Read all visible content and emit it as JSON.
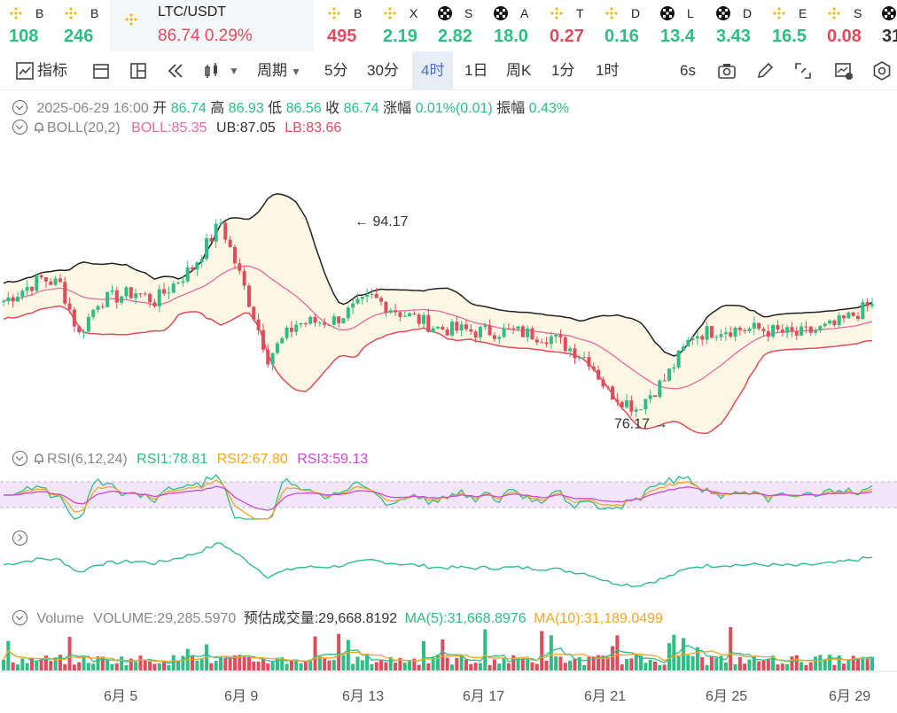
{
  "tickers": [
    {
      "name": "B",
      "price": "108",
      "color": "up",
      "icon": "binance-icon"
    },
    {
      "name": "B",
      "price": "246",
      "color": "up",
      "icon": "binance-icon"
    },
    {
      "name": "LTC/USDT",
      "price": "86.74",
      "change": "0.29%",
      "color": "dn",
      "icon": "binance-icon"
    },
    {
      "name": "B",
      "price": "495",
      "color": "dn",
      "icon": "binance-icon"
    },
    {
      "name": "X",
      "price": "2.19",
      "color": "up",
      "icon": "binance-icon"
    },
    {
      "name": "S",
      "price": "2.82",
      "color": "up",
      "icon": "okx-icon"
    },
    {
      "name": "A",
      "price": "18.0",
      "color": "up",
      "icon": "okx-icon"
    },
    {
      "name": "T",
      "price": "0.27",
      "color": "dn",
      "icon": "binance-icon"
    },
    {
      "name": "D",
      "price": "0.16",
      "color": "up",
      "icon": "binance-icon"
    },
    {
      "name": "L",
      "price": "13.4",
      "color": "up",
      "icon": "okx-icon"
    },
    {
      "name": "D",
      "price": "3.43",
      "color": "up",
      "icon": "okx-icon"
    },
    {
      "name": "E",
      "price": "16.5",
      "color": "up",
      "icon": "binance-icon"
    },
    {
      "name": "S",
      "price": "0.08",
      "color": "dn",
      "icon": "binance-icon"
    },
    {
      "name": "",
      "price": "31",
      "color": "k",
      "icon": "okx-icon"
    }
  ],
  "toolbar": {
    "indicator": "指标",
    "period": "周期",
    "intervals": [
      "5分",
      "30分",
      "4时",
      "1日",
      "周K",
      "1分",
      "1时"
    ],
    "selected": "4时",
    "refresh": "6s"
  },
  "ohlc": {
    "date": "2025-06-29 16:00",
    "open_l": "开",
    "open": "86.74",
    "high_l": "高",
    "high": "86.93",
    "low_l": "低",
    "low": "86.56",
    "close_l": "收",
    "close": "86.74",
    "chg_l": "涨幅",
    "chg": "0.01%(0.01)",
    "amp_l": "振幅",
    "amp": "0.43%"
  },
  "boll": {
    "name": "BOLL(20,2)",
    "mid": "BOLL:85.35",
    "ub": "UB:87.05",
    "lb": "LB:83.66"
  },
  "rsi": {
    "name": "RSI(6,12,24)",
    "r1": "RSI1:78.81",
    "r2": "RSI2:67.80",
    "r3": "RSI3:59.13"
  },
  "vol": {
    "name": "Volume",
    "v": "VOLUME:29,285.5970",
    "est": "预估成交量:29,668.8192",
    "ma5": "MA(5):31,668.8976",
    "ma10": "MA(10):31,189.0499"
  },
  "xaxis": [
    "6月 5",
    "6月 9",
    "6月 13",
    "6月 17",
    "6月 21",
    "6月 25",
    "6月 29"
  ],
  "annotations": {
    "high": "94.17",
    "low": "76.17"
  },
  "colors": {
    "up": "#2ebd85",
    "down": "#e04c5c",
    "boll_mid": "#e86aa0",
    "ub": "#222",
    "lb": "#e04c5c",
    "rsi1": "#2ebd85",
    "rsi2": "#f5a623",
    "rsi3": "#c84ad6"
  },
  "chart_data": {
    "type": "candlestick",
    "price_range": [
      74,
      100
    ],
    "keypoints": [
      [
        0,
        87
      ],
      [
        8,
        89
      ],
      [
        12,
        88.5
      ],
      [
        16,
        84
      ],
      [
        20,
        87
      ],
      [
        28,
        87.8
      ],
      [
        32,
        87
      ],
      [
        40,
        90
      ],
      [
        46,
        94
      ],
      [
        52,
        87
      ],
      [
        56,
        82
      ],
      [
        62,
        85
      ],
      [
        70,
        85.3
      ],
      [
        78,
        87.3
      ],
      [
        84,
        86
      ],
      [
        92,
        84.6
      ],
      [
        100,
        84.3
      ],
      [
        108,
        84.3
      ],
      [
        116,
        83.8
      ],
      [
        124,
        81.8
      ],
      [
        128,
        79
      ],
      [
        134,
        77.5
      ],
      [
        140,
        80
      ],
      [
        146,
        84
      ],
      [
        152,
        84.5
      ],
      [
        160,
        84.5
      ],
      [
        168,
        84
      ],
      [
        176,
        84.8
      ],
      [
        184,
        86.74
      ]
    ],
    "count": 185
  }
}
